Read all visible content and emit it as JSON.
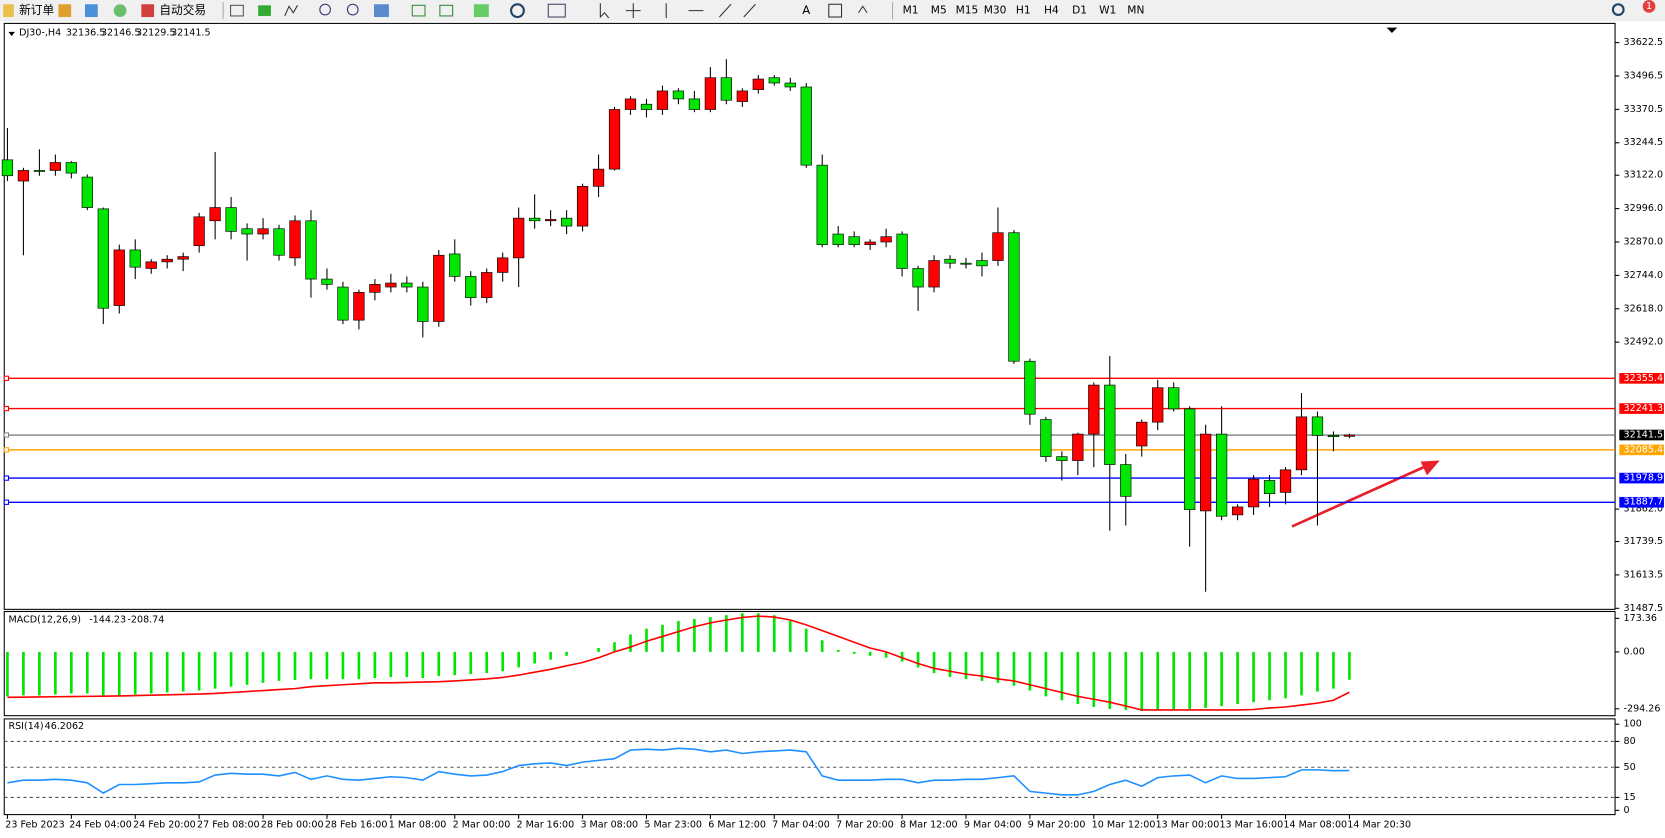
{
  "toolbar": {
    "new_order": "新订单",
    "auto_trade": "自动交易",
    "timeframes": [
      "M1",
      "M5",
      "M15",
      "M30",
      "H1",
      "H4",
      "D1",
      "W1",
      "MN"
    ],
    "text_tool": "A",
    "alert_count": "1"
  },
  "chart_data": {
    "type": "candlestick",
    "title": "DJ30-,H4",
    "header_values": [
      32136.5,
      32146.5,
      32129.5,
      32141.5
    ],
    "up_color": "#ff0000",
    "down_color": "#00e600",
    "categories": [
      "23 Feb 2023",
      null,
      null,
      null,
      "24 Feb 04:00",
      null,
      null,
      null,
      "24 Feb 20:00",
      null,
      null,
      null,
      "27 Feb 08:00",
      null,
      null,
      null,
      "28 Feb 00:00",
      null,
      null,
      null,
      "28 Feb 16:00",
      null,
      null,
      null,
      "1 Mar 08:00",
      null,
      null,
      null,
      "2 Mar 00:00",
      null,
      null,
      null,
      "2 Mar 16:00",
      null,
      null,
      null,
      "3 Mar 08:00",
      null,
      null,
      null,
      "5 Mar 23:00",
      null,
      null,
      null,
      "6 Mar 12:00",
      null,
      null,
      null,
      "7 Mar 04:00",
      null,
      null,
      null,
      "7 Mar 20:00",
      null,
      null,
      null,
      "8 Mar 12:00",
      null,
      null,
      null,
      "9 Mar 04:00",
      null,
      null,
      null,
      "9 Mar 20:00",
      null,
      null,
      null,
      "10 Mar 12:00",
      null,
      null,
      null,
      "13 Mar 00:00",
      null,
      null,
      null,
      "13 Mar 16:00",
      null,
      null,
      null,
      "14 Mar 08:00",
      null,
      null,
      null,
      "14 Mar 20:30"
    ],
    "candles": [
      [
        33180,
        33300,
        33100,
        33120
      ],
      [
        33100,
        33150,
        32820,
        33140
      ],
      [
        33140,
        33220,
        33120,
        33140
      ],
      [
        33140,
        33200,
        33120,
        33170
      ],
      [
        33170,
        33175,
        33110,
        33130
      ],
      [
        33115,
        33125,
        32990,
        33000
      ],
      [
        32995,
        33000,
        32560,
        32620
      ],
      [
        32630,
        32860,
        32600,
        32840
      ],
      [
        32840,
        32880,
        32730,
        32775
      ],
      [
        32770,
        32805,
        32750,
        32795
      ],
      [
        32795,
        32820,
        32770,
        32805
      ],
      [
        32805,
        32830,
        32760,
        32815
      ],
      [
        32856,
        32980,
        32830,
        32965
      ],
      [
        32950,
        33210,
        32880,
        33000
      ],
      [
        33000,
        33040,
        32880,
        32910
      ],
      [
        32920,
        32940,
        32800,
        32900
      ],
      [
        32900,
        32960,
        32880,
        32920
      ],
      [
        32920,
        32935,
        32800,
        32820
      ],
      [
        32810,
        32970,
        32780,
        32950
      ],
      [
        32950,
        32990,
        32660,
        32730
      ],
      [
        32730,
        32770,
        32690,
        32710
      ],
      [
        32700,
        32720,
        32560,
        32575
      ],
      [
        32575,
        32690,
        32540,
        32680
      ],
      [
        32680,
        32730,
        32650,
        32710
      ],
      [
        32700,
        32750,
        32680,
        32715
      ],
      [
        32715,
        32740,
        32680,
        32700
      ],
      [
        32700,
        32720,
        32510,
        32570
      ],
      [
        32570,
        32840,
        32550,
        32820
      ],
      [
        32825,
        32880,
        32720,
        32740
      ],
      [
        32740,
        32760,
        32630,
        32660
      ],
      [
        32660,
        32770,
        32640,
        32755
      ],
      [
        32755,
        32830,
        32720,
        32810
      ],
      [
        32810,
        33000,
        32700,
        32960
      ],
      [
        32960,
        33050,
        32920,
        32950
      ],
      [
        32950,
        32990,
        32930,
        32955
      ],
      [
        32960,
        32990,
        32900,
        32930
      ],
      [
        32930,
        33090,
        32910,
        33080
      ],
      [
        33080,
        33200,
        33040,
        33145
      ],
      [
        33145,
        33380,
        33140,
        33370
      ],
      [
        33370,
        33420,
        33350,
        33410
      ],
      [
        33390,
        33410,
        33340,
        33370
      ],
      [
        33370,
        33460,
        33350,
        33440
      ],
      [
        33440,
        33450,
        33390,
        33410
      ],
      [
        33410,
        33440,
        33360,
        33370
      ],
      [
        33370,
        33530,
        33360,
        33490
      ],
      [
        33490,
        33560,
        33390,
        33405
      ],
      [
        33400,
        33450,
        33380,
        33440
      ],
      [
        33445,
        33500,
        33430,
        33485
      ],
      [
        33490,
        33500,
        33460,
        33470
      ],
      [
        33470,
        33490,
        33440,
        33455
      ],
      [
        33455,
        33470,
        33150,
        33160
      ],
      [
        33160,
        33200,
        32850,
        32860
      ],
      [
        32900,
        32930,
        32850,
        32860
      ],
      [
        32890,
        32910,
        32850,
        32860
      ],
      [
        32860,
        32880,
        32840,
        32870
      ],
      [
        32870,
        32920,
        32850,
        32890
      ],
      [
        32900,
        32910,
        32740,
        32770
      ],
      [
        32770,
        32780,
        32610,
        32700
      ],
      [
        32700,
        32820,
        32680,
        32800
      ],
      [
        32805,
        32820,
        32770,
        32790
      ],
      [
        32790,
        32810,
        32770,
        32790
      ],
      [
        32800,
        32830,
        32740,
        32780
      ],
      [
        32800,
        33000,
        32780,
        32905
      ],
      [
        32905,
        32915,
        32410,
        32420
      ],
      [
        32420,
        32430,
        32180,
        32220
      ],
      [
        32200,
        32210,
        32040,
        32060
      ],
      [
        32060,
        32080,
        31970,
        32045
      ],
      [
        32045,
        32150,
        31990,
        32145
      ],
      [
        32145,
        32340,
        32020,
        32330
      ],
      [
        32330,
        32440,
        31780,
        32030
      ],
      [
        32030,
        32070,
        31800,
        31910
      ],
      [
        32100,
        32200,
        32060,
        32190
      ],
      [
        32190,
        32350,
        32160,
        32320
      ],
      [
        32320,
        32340,
        32230,
        32240
      ],
      [
        32240,
        32250,
        31720,
        31860
      ],
      [
        31855,
        32180,
        31550,
        32145
      ],
      [
        32145,
        32250,
        31820,
        31835
      ],
      [
        31840,
        31880,
        31820,
        31870
      ],
      [
        31870,
        31990,
        31840,
        31975
      ],
      [
        31970,
        31990,
        31870,
        31920
      ],
      [
        31925,
        32020,
        31880,
        32010
      ],
      [
        32010,
        32300,
        31990,
        32210
      ],
      [
        32210,
        32230,
        31800,
        32140
      ],
      [
        32140,
        32155,
        32080,
        32135
      ],
      [
        32136.5,
        32146.5,
        32129.5,
        32141.5
      ]
    ],
    "ylim": [
      31483.5,
      33695
    ],
    "yticks": [
      33622.5,
      33496.5,
      33370.5,
      33244.5,
      {
        "value": 33122,
        "label": "33122.0"
      },
      {
        "value": 32996,
        "label": "32996.0"
      },
      {
        "value": 32870,
        "label": "32870.0"
      },
      {
        "value": 32744,
        "label": "32744.0"
      },
      {
        "value": 32618,
        "label": "32618.0"
      },
      {
        "value": 32492,
        "label": "32492.0"
      },
      {
        "value": 31862,
        "label": "31862.0"
      },
      31739.5,
      31613.5,
      31487.5
    ],
    "levels": [
      {
        "value": 32355.4,
        "color": "#ff0000"
      },
      {
        "value": 32241.3,
        "color": "#ff0000"
      },
      {
        "value": 32085.4,
        "color": "#ffa500"
      },
      {
        "value": 31978.9,
        "color": "#0000ff"
      },
      {
        "value": 31887.7,
        "color": "#0000ff"
      }
    ],
    "bid": {
      "value": 32141.5,
      "color": "#808080"
    },
    "macd": {
      "name": "MACD(12,26,9)",
      "readout": [
        -144.23,
        -208.74
      ],
      "hist_color": "#00e600",
      "signal_color": "#ff0000",
      "ylim": [
        -330,
        209
      ],
      "yticks": [
        173.36,
        {
          "value": 0,
          "label": "0.00"
        },
        -294.26
      ],
      "hist": [
        -230,
        -225,
        -225,
        -220,
        -215,
        -215,
        -225,
        -225,
        -220,
        -215,
        -210,
        -205,
        -200,
        -190,
        -180,
        -170,
        -160,
        -150,
        -145,
        -140,
        -140,
        -140,
        -140,
        -135,
        -130,
        -130,
        -135,
        -125,
        -120,
        -115,
        -110,
        -100,
        -80,
        -60,
        -40,
        -20,
        0,
        20,
        50,
        90,
        120,
        140,
        160,
        170,
        180,
        190,
        200,
        200,
        190,
        160,
        120,
        60,
        10,
        -10,
        -20,
        -30,
        -50,
        -80,
        -110,
        -130,
        -140,
        -150,
        -160,
        -175,
        -200,
        -230,
        -250,
        -270,
        -285,
        -295,
        -300,
        -305,
        -300,
        -300,
        -295,
        -290,
        -280,
        -270,
        -260,
        -250,
        -240,
        -225,
        -205,
        -190,
        -144.23
      ],
      "signal": [
        -235,
        -234,
        -233,
        -232,
        -231,
        -230,
        -229,
        -228,
        -226,
        -224,
        -222,
        -220,
        -218,
        -215,
        -210,
        -205,
        -200,
        -195,
        -190,
        -180,
        -175,
        -170,
        -165,
        -160,
        -160,
        -158,
        -156,
        -154,
        -150,
        -145,
        -140,
        -132,
        -120,
        -105,
        -90,
        -72,
        -55,
        -30,
        0,
        25,
        55,
        80,
        105,
        130,
        150,
        165,
        178,
        185,
        180,
        165,
        140,
        110,
        80,
        50,
        20,
        0,
        -30,
        -60,
        -85,
        -100,
        -115,
        -125,
        -140,
        -150,
        -170,
        -190,
        -210,
        -230,
        -245,
        -260,
        -280,
        -300,
        -300,
        -300,
        -300,
        -300,
        -300,
        -300,
        -298,
        -290,
        -285,
        -275,
        -265,
        -250,
        -208.74
      ]
    },
    "rsi": {
      "name": "RSI(14)",
      "readout": 46.2062,
      "color": "#1e90ff",
      "ylim": [
        0,
        100
      ],
      "yticks": [
        100,
        80,
        50,
        15,
        0
      ],
      "levels": [
        80,
        50,
        15
      ],
      "values": [
        32,
        35,
        35,
        36,
        35,
        32,
        20,
        30,
        30,
        31,
        32,
        32,
        33,
        41,
        43,
        42,
        42,
        40,
        44,
        36,
        40,
        36,
        35,
        37,
        39,
        38,
        35,
        45,
        42,
        40,
        41,
        45,
        52,
        54,
        55,
        52,
        56,
        58,
        60,
        70,
        71,
        70,
        72,
        71,
        68,
        70,
        66,
        68,
        69,
        70,
        68,
        40,
        35,
        35,
        35,
        36,
        36,
        32,
        35,
        35,
        36,
        36,
        38,
        40,
        22,
        20,
        18,
        18,
        22,
        30,
        35,
        28,
        38,
        40,
        41,
        32,
        40,
        37,
        37,
        38,
        39,
        47,
        47,
        46,
        46.2062
      ]
    }
  }
}
